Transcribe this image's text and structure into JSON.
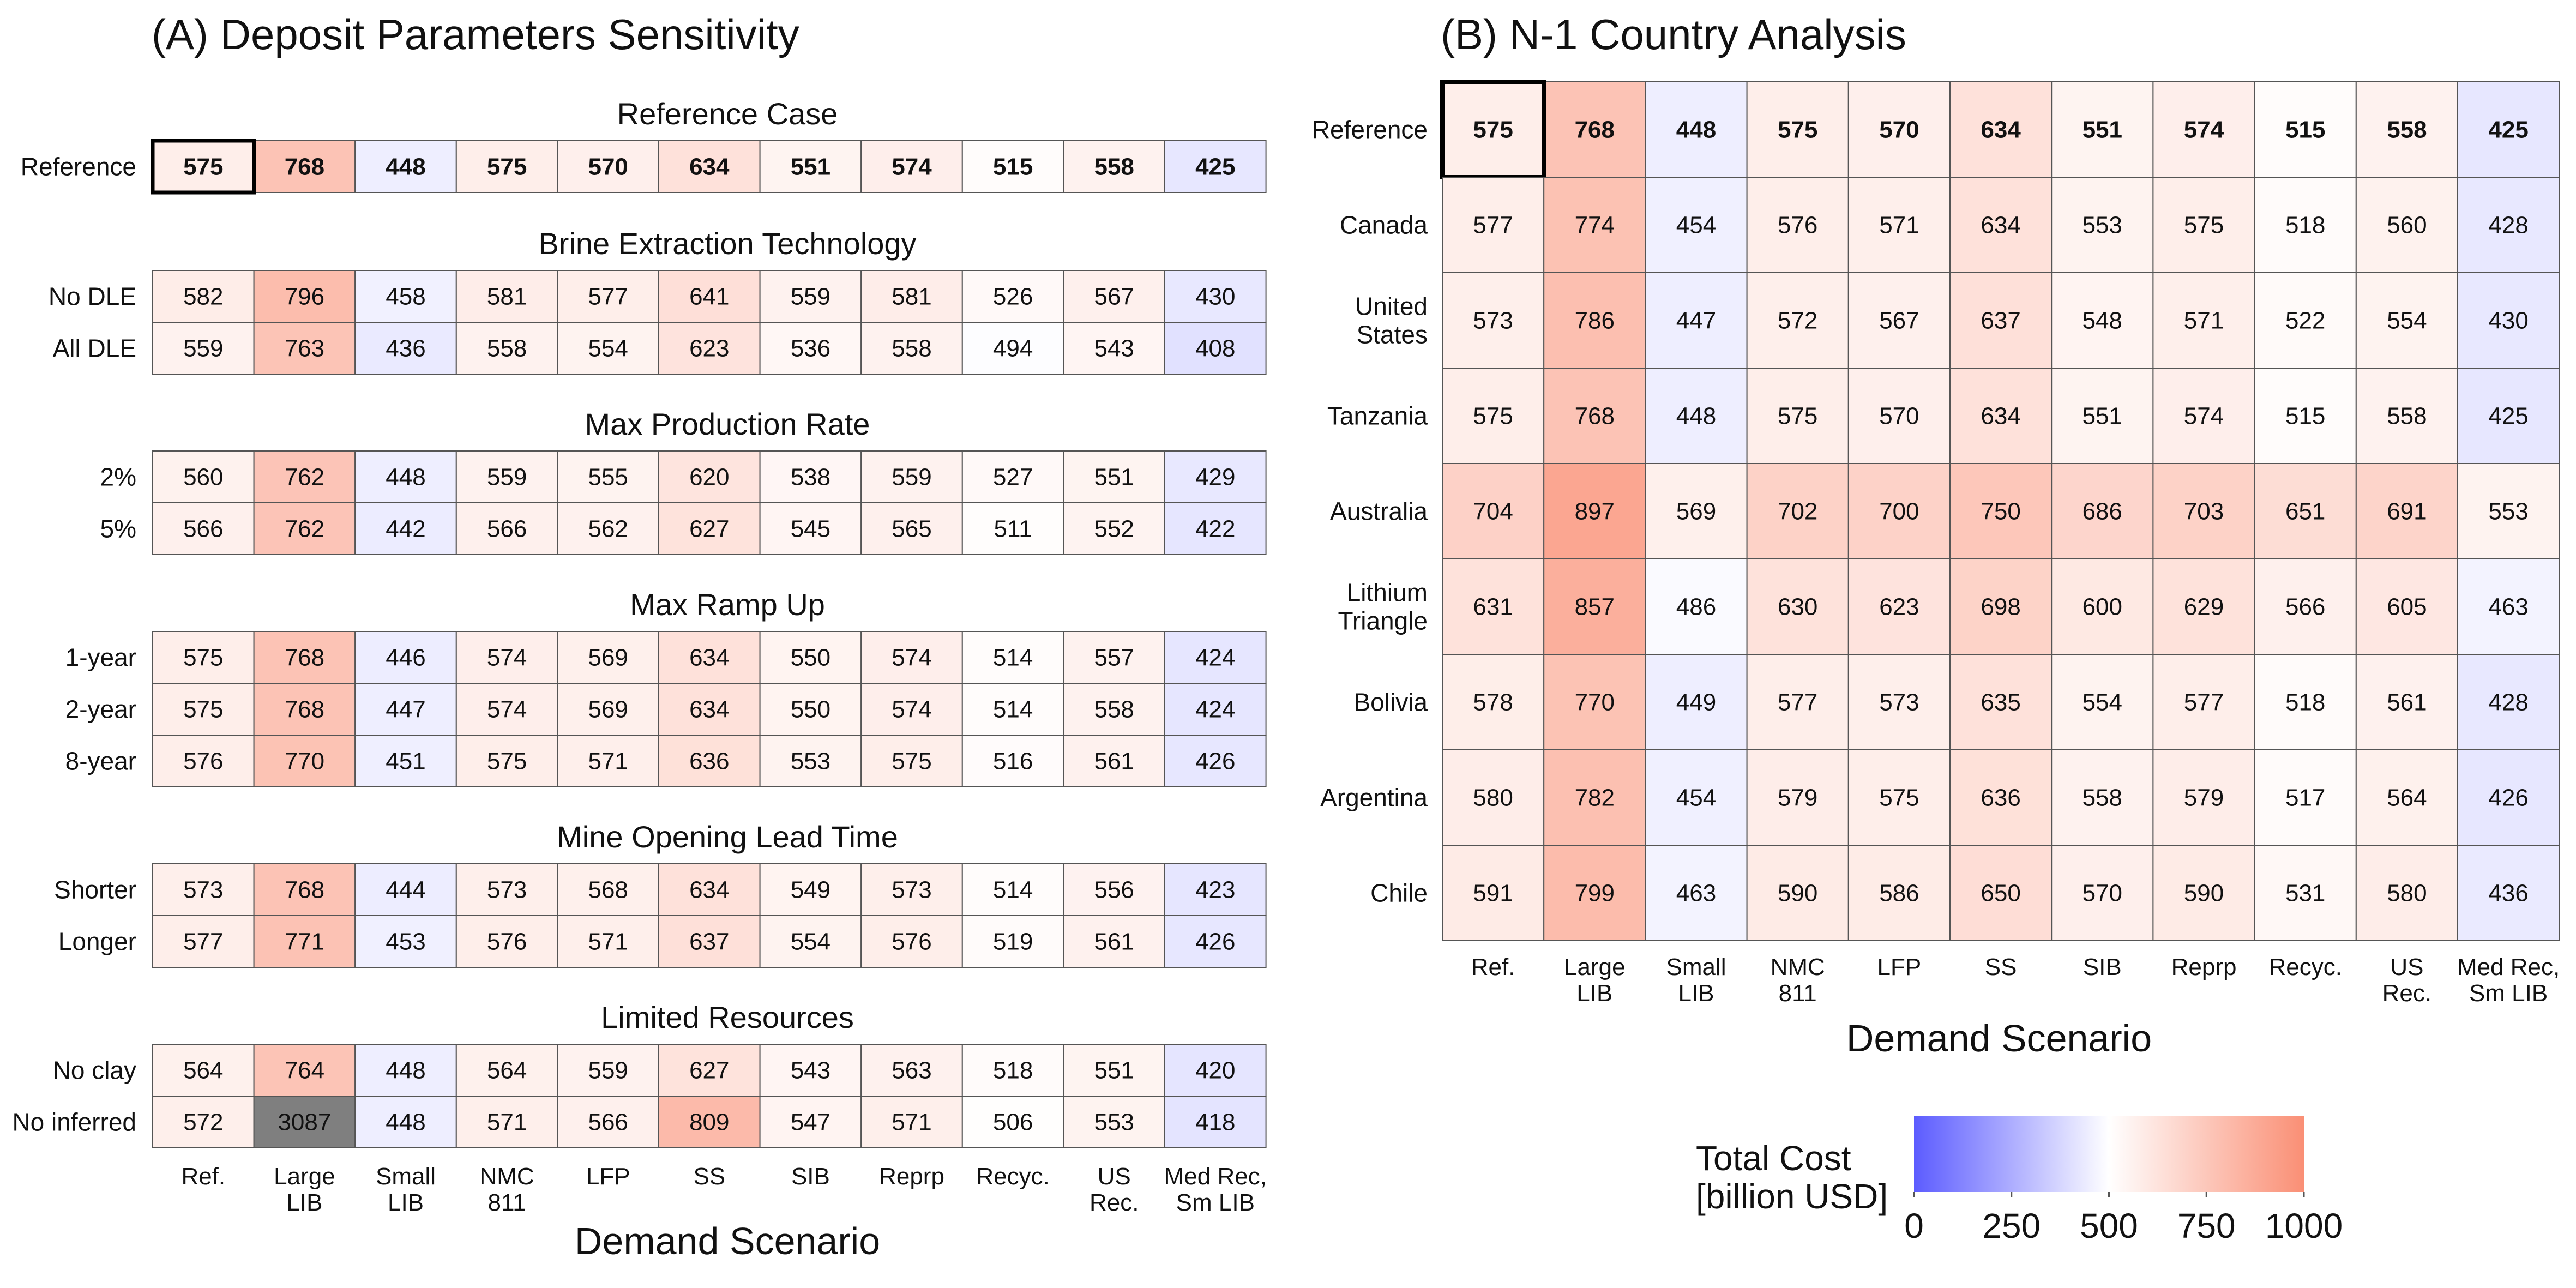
{
  "panel_a": {
    "title": "(A) Deposit Parameters Sensitivity",
    "xlabel": "Demand Scenario"
  },
  "panel_b": {
    "title": "(B) N-1 Country Analysis",
    "xlabel": "Demand Scenario"
  },
  "legend": {
    "title_line1": "Total Cost",
    "title_line2": "[billion USD]",
    "ticks": [
      "0",
      "250",
      "500",
      "750",
      "1000"
    ],
    "colors": {
      "low": "#5c5cff",
      "mid": "#ffffff",
      "high": "#fa8f75",
      "na": "#7f7f7f"
    }
  },
  "chart_data": [
    {
      "type": "heatmap",
      "title": "(A) Deposit Parameters Sensitivity",
      "xlabel": "Demand Scenario",
      "columns": [
        "Ref.",
        "Large LIB",
        "Small LIB",
        "NMC 811",
        "LFP",
        "SS",
        "SIB",
        "Reprp",
        "Recyc.",
        "US Rec.",
        "Med Rec, Sm LIB"
      ],
      "color_scale": {
        "min": 0,
        "mid": 500,
        "max": 1000
      },
      "groups": [
        {
          "name": "Reference Case",
          "rows": [
            {
              "label": "Reference",
              "bold": true,
              "values": [
                575,
                768,
                448,
                575,
                570,
                634,
                551,
                574,
                515,
                558,
                425
              ]
            }
          ]
        },
        {
          "name": "Brine Extraction Technology",
          "rows": [
            {
              "label": "No DLE",
              "values": [
                582,
                796,
                458,
                581,
                577,
                641,
                559,
                581,
                526,
                567,
                430
              ]
            },
            {
              "label": "All DLE",
              "values": [
                559,
                763,
                436,
                558,
                554,
                623,
                536,
                558,
                494,
                543,
                408
              ]
            }
          ]
        },
        {
          "name": "Max Production Rate",
          "rows": [
            {
              "label": "2%",
              "values": [
                560,
                762,
                448,
                559,
                555,
                620,
                538,
                559,
                527,
                551,
                429
              ]
            },
            {
              "label": "5%",
              "values": [
                566,
                762,
                442,
                566,
                562,
                627,
                545,
                565,
                511,
                552,
                422
              ]
            }
          ]
        },
        {
          "name": "Max Ramp Up",
          "rows": [
            {
              "label": "1-year",
              "values": [
                575,
                768,
                446,
                574,
                569,
                634,
                550,
                574,
                514,
                557,
                424
              ]
            },
            {
              "label": "2-year",
              "values": [
                575,
                768,
                447,
                574,
                569,
                634,
                550,
                574,
                514,
                558,
                424
              ]
            },
            {
              "label": "8-year",
              "values": [
                576,
                770,
                451,
                575,
                571,
                636,
                553,
                575,
                516,
                561,
                426
              ]
            }
          ]
        },
        {
          "name": "Mine Opening Lead Time",
          "rows": [
            {
              "label": "Shorter",
              "values": [
                573,
                768,
                444,
                573,
                568,
                634,
                549,
                573,
                514,
                556,
                423
              ]
            },
            {
              "label": "Longer",
              "values": [
                577,
                771,
                453,
                576,
                571,
                637,
                554,
                576,
                519,
                561,
                426
              ]
            }
          ]
        },
        {
          "name": "Limited Resources",
          "rows": [
            {
              "label": "No clay",
              "values": [
                564,
                764,
                448,
                564,
                559,
                627,
                543,
                563,
                518,
                551,
                420
              ]
            },
            {
              "label": "No inferred",
              "values": [
                572,
                3087,
                448,
                571,
                566,
                809,
                547,
                571,
                506,
                553,
                418
              ]
            }
          ]
        }
      ]
    },
    {
      "type": "heatmap",
      "title": "(B) N-1 Country Analysis",
      "xlabel": "Demand Scenario",
      "columns": [
        "Ref.",
        "Large LIB",
        "Small LIB",
        "NMC 811",
        "LFP",
        "SS",
        "SIB",
        "Reprp",
        "Recyc.",
        "US Rec.",
        "Med Rec, Sm LIB"
      ],
      "color_scale": {
        "min": 0,
        "mid": 500,
        "max": 1000
      },
      "rows": [
        {
          "label": "Reference",
          "bold": true,
          "values": [
            575,
            768,
            448,
            575,
            570,
            634,
            551,
            574,
            515,
            558,
            425
          ]
        },
        {
          "label": "Canada",
          "values": [
            577,
            774,
            454,
            576,
            571,
            634,
            553,
            575,
            518,
            560,
            428
          ]
        },
        {
          "label": "United States",
          "values": [
            573,
            786,
            447,
            572,
            567,
            637,
            548,
            571,
            522,
            554,
            430
          ]
        },
        {
          "label": "Tanzania",
          "values": [
            575,
            768,
            448,
            575,
            570,
            634,
            551,
            574,
            515,
            558,
            425
          ]
        },
        {
          "label": "Australia",
          "values": [
            704,
            897,
            569,
            702,
            700,
            750,
            686,
            703,
            651,
            691,
            553
          ]
        },
        {
          "label": "Lithium Triangle",
          "values": [
            631,
            857,
            486,
            630,
            623,
            698,
            600,
            629,
            566,
            605,
            463
          ]
        },
        {
          "label": "Bolivia",
          "values": [
            578,
            770,
            449,
            577,
            573,
            635,
            554,
            577,
            518,
            561,
            428
          ]
        },
        {
          "label": "Argentina",
          "values": [
            580,
            782,
            454,
            579,
            575,
            636,
            558,
            579,
            517,
            564,
            426
          ]
        },
        {
          "label": "Chile",
          "values": [
            591,
            799,
            463,
            590,
            586,
            650,
            570,
            590,
            531,
            580,
            436
          ]
        }
      ]
    }
  ]
}
